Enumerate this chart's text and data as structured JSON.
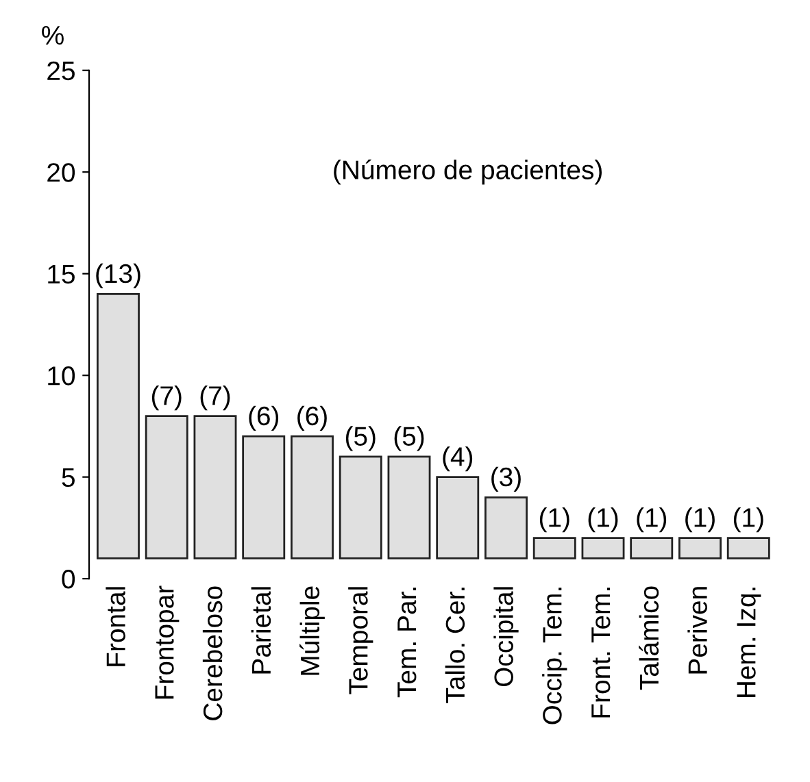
{
  "chart_data": {
    "type": "bar",
    "ylabel": "%",
    "categories": [
      "Frontal",
      "Frontopar",
      "Cerebeloso",
      "Parietal",
      "Múltiple",
      "Temporal",
      "Tem. Par.",
      "Tallo. Cer.",
      "Occipital",
      "Occip. Tem.",
      "Front. Tem.",
      "Talámico",
      "Periven",
      "Hem. Izq."
    ],
    "base": [
      1,
      1,
      1,
      1,
      1,
      1,
      1,
      1,
      1,
      1,
      1,
      1,
      1,
      1
    ],
    "values": [
      13,
      7,
      7,
      6,
      6,
      5,
      5,
      4,
      3,
      1,
      1,
      1,
      1,
      1
    ],
    "value_labels": [
      "(13)",
      "(7)",
      "(7)",
      "(6)",
      "(6)",
      "(5)",
      "(5)",
      "(4)",
      "(3)",
      "(1)",
      "(1)",
      "(1)",
      "(1)",
      "(1)"
    ],
    "color": "#e0e0e0",
    "annotations": [
      "(Número de pacientes)"
    ],
    "ylim": [
      0,
      25
    ],
    "yticks": [
      0,
      5,
      10,
      15,
      20,
      25
    ],
    "grid": false
  }
}
